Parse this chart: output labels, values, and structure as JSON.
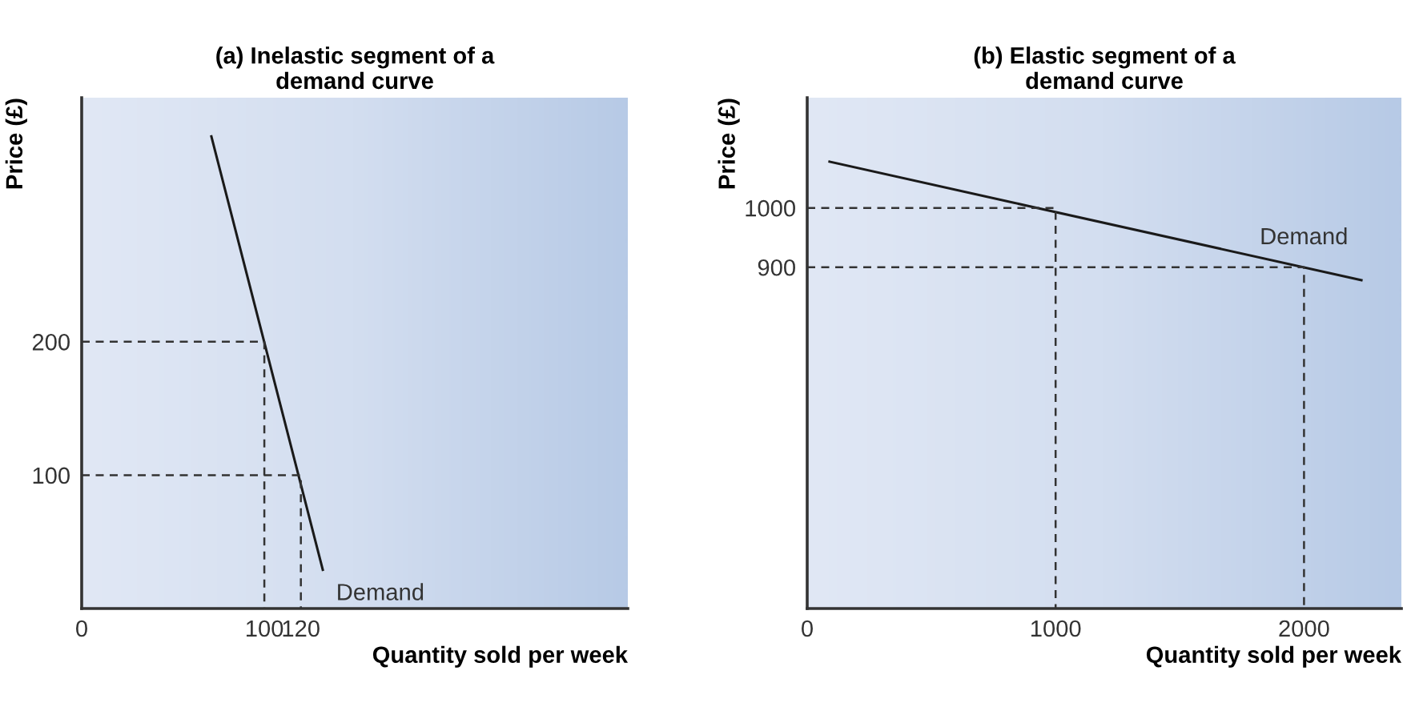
{
  "chart_data": [
    {
      "type": "line",
      "title": "(a) Inelastic segment of a\ndemand curve",
      "xlabel": "Quantity sold per week",
      "ylabel": "Price (£)",
      "xlim": [
        0,
        299
      ],
      "ylim": [
        0,
        383
      ],
      "xticks": [
        0,
        100,
        120
      ],
      "yticks": [
        100,
        200
      ],
      "grid": false,
      "legend": false,
      "series": [
        {
          "color": "#1a1a1a",
          "x": [
            71,
            132
          ],
          "values": [
            354,
            29
          ],
          "line_style": "solid"
        },
        {
          "color": "#333333",
          "x": [
            0,
            100,
            100
          ],
          "values": [
            200,
            200,
            0
          ],
          "line_style": "dashed"
        },
        {
          "color": "#333333",
          "x": [
            0,
            120,
            120
          ],
          "values": [
            100,
            100,
            0
          ],
          "line_style": "dashed"
        }
      ],
      "annotations": [
        "Demand"
      ]
    },
    {
      "type": "line",
      "title": "(b) Elastic segment of a\ndemand curve",
      "xlabel": "Quantity sold per week",
      "ylabel": "Price (£)",
      "xlim": [
        0,
        2392
      ],
      "ylim": [
        324,
        1186
      ],
      "xticks": [
        0,
        1000,
        2000
      ],
      "yticks": [
        900,
        1000
      ],
      "grid": false,
      "legend": false,
      "series": [
        {
          "color": "#1a1a1a",
          "x": [
            90,
            2231
          ],
          "values": [
            1078,
            878
          ],
          "line_style": "solid"
        },
        {
          "color": "#333333",
          "x": [
            0,
            1000,
            1000
          ],
          "values": [
            1000,
            1000,
            324
          ],
          "line_style": "dashed"
        },
        {
          "color": "#333333",
          "x": [
            0,
            2000,
            2000
          ],
          "values": [
            900,
            900,
            324
          ],
          "line_style": "dashed"
        }
      ],
      "annotations": [
        "Demand"
      ]
    }
  ]
}
